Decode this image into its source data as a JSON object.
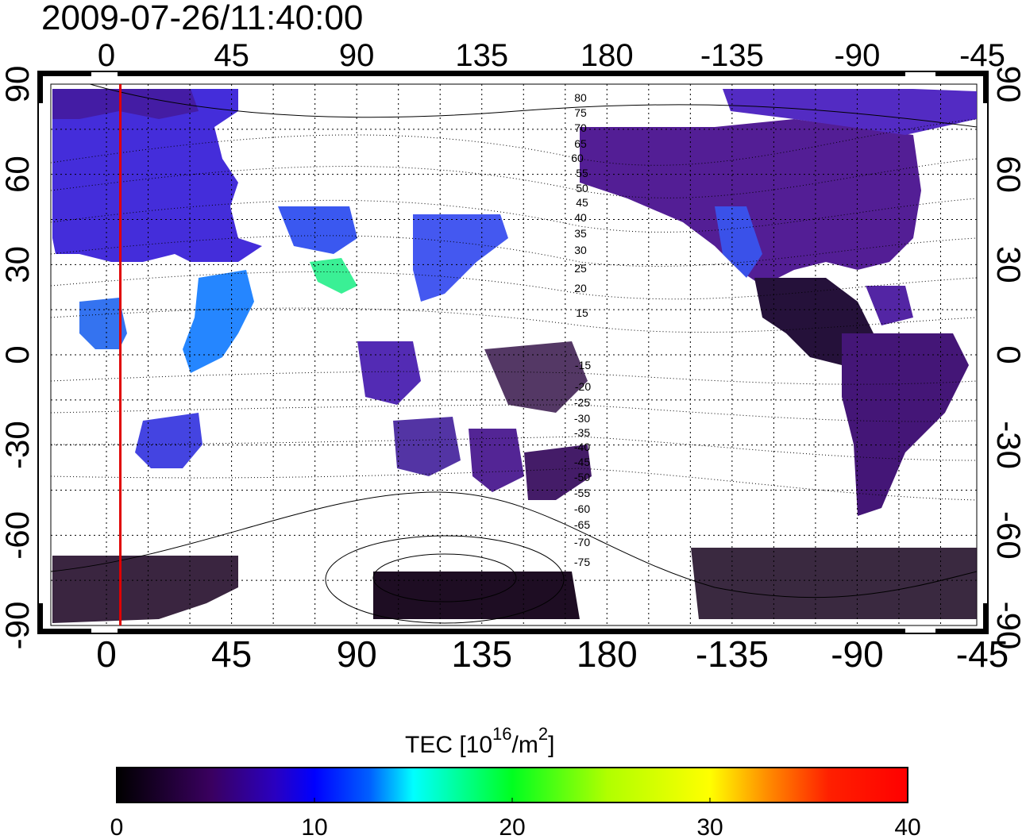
{
  "title": "2009-07-26/11:40:00",
  "map": {
    "top_lon_ticks": [
      "0",
      "45",
      "90",
      "135",
      "180",
      "-135",
      "-90",
      "-45"
    ],
    "bottom_lon_ticks": [
      "0",
      "45",
      "90",
      "135",
      "180",
      "-135",
      "-90",
      "-45"
    ],
    "left_lat_ticks": [
      "90",
      "60",
      "30",
      "0",
      "-30",
      "-60",
      "-90"
    ],
    "right_lat_ticks": [
      "90",
      "60",
      "30",
      "0",
      "-30",
      "-60",
      "-90"
    ],
    "lon_range": [
      -20,
      313
    ],
    "lat_range": [
      -90,
      90
    ],
    "marker_line_lon": 5,
    "marker_line_color": "#e00000",
    "contour_labels": [
      "80",
      "75",
      "70",
      "65",
      "60",
      "55",
      "50",
      "45",
      "40",
      "35",
      "30",
      "25",
      "20",
      "15",
      "-15",
      "-20",
      "-25",
      "-30",
      "-35",
      "-40",
      "-45",
      "-50",
      "-55",
      "-60",
      "-65",
      "-70",
      "-75"
    ]
  },
  "colorbar": {
    "label_main": "TEC  [10",
    "label_exp": "16",
    "label_unit": "/m",
    "label_exp2": "2",
    "label_end": "]",
    "ticks": [
      "0",
      "10",
      "20",
      "30",
      "40"
    ],
    "range": [
      0,
      40
    ],
    "colors": [
      "#000000",
      "#3a0060",
      "#2000d8",
      "#0048ff",
      "#00ffff",
      "#00ff40",
      "#ffff00",
      "#ff8000",
      "#ff0000"
    ]
  }
}
